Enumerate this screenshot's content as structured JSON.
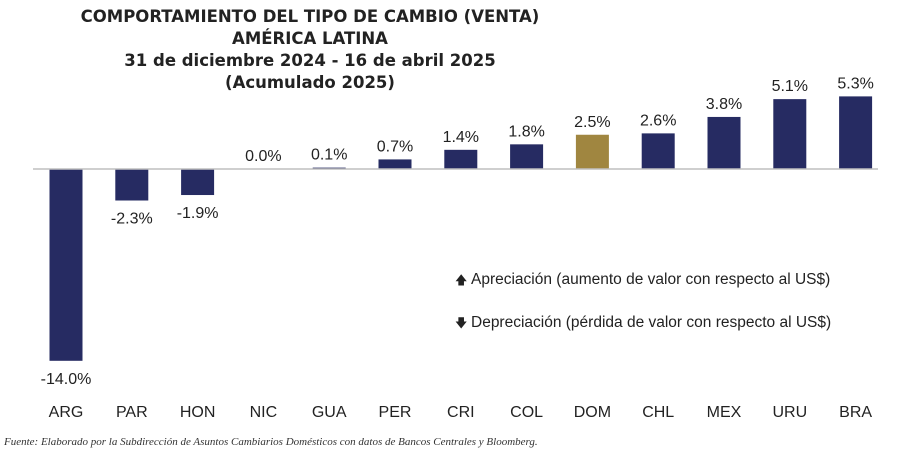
{
  "chart_data": {
    "type": "bar",
    "title": "COMPORTAMIENTO DEL TIPO DE CAMBIO (VENTA)",
    "subtitle_lines": [
      "AMÉRICA LATINA",
      "31 de diciembre 2024 - 16 de abril 2025",
      "(Acumulado 2025)"
    ],
    "categories": [
      "ARG",
      "PAR",
      "HON",
      "NIC",
      "GUA",
      "PER",
      "CRI",
      "COL",
      "DOM",
      "CHL",
      "MEX",
      "URU",
      "BRA"
    ],
    "values": [
      -14.0,
      -2.3,
      -1.9,
      0.0,
      0.1,
      0.7,
      1.4,
      1.8,
      2.5,
      2.6,
      3.8,
      5.1,
      5.3
    ],
    "data_labels": [
      "-14.0%",
      "-2.3%",
      "-1.9%",
      "0.0%",
      "0.1%",
      "0.7%",
      "1.4%",
      "1.8%",
      "2.5%",
      "2.6%",
      "3.8%",
      "5.1%",
      "5.3%"
    ],
    "highlight_category": "DOM",
    "colors": {
      "bar": "#262b62",
      "highlight": "#a08640",
      "axis": "#bfbfbf",
      "text": "#222222"
    },
    "ylim": [
      -14.0,
      5.3
    ],
    "grid": false,
    "legend": {
      "placement": "right",
      "items": [
        {
          "icon": "arrow-up-icon",
          "text": "Apreciación (aumento de valor con respecto al US$)"
        },
        {
          "icon": "arrow-down-icon",
          "text": "Depreciación (pérdida de valor con respecto al US$)"
        }
      ]
    }
  },
  "source": "Fuente: Elaborado por la Subdirección de Asuntos Cambiarios Domésticos con datos de Bancos Centrales y Bloomberg."
}
